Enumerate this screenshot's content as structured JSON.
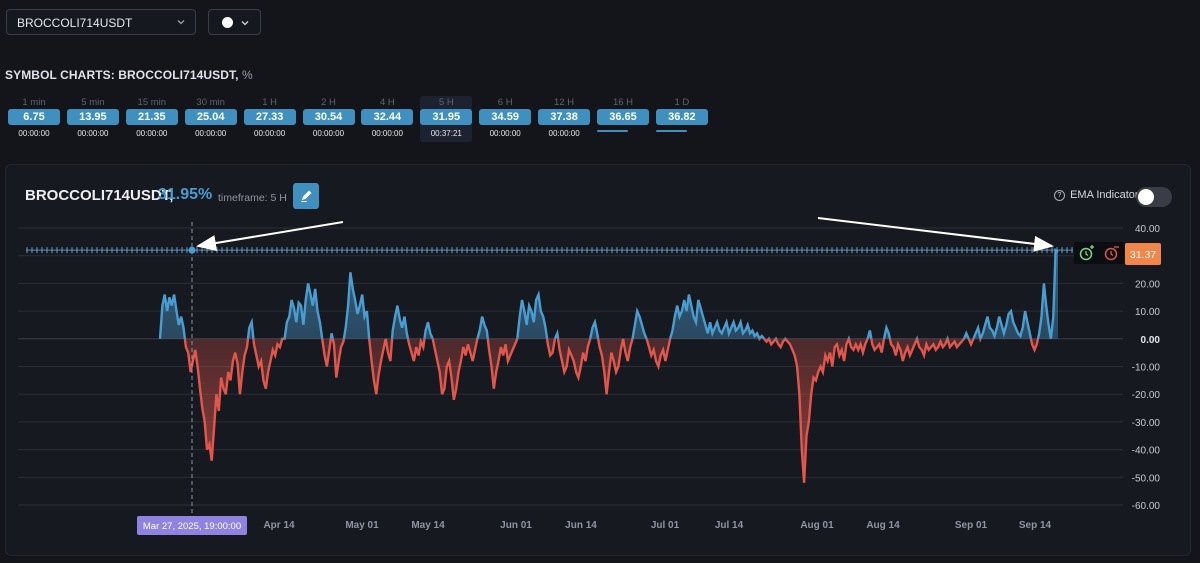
{
  "symbol_select": {
    "value": "BROCCOLI714USDT"
  },
  "color_select": {
    "color": "#ffffff"
  },
  "section": {
    "title": "SYMBOL CHARTS: BROCCOLI714USDT,",
    "unit": "%"
  },
  "timeframes": [
    {
      "label": "1 min",
      "value": "6.75",
      "countdown": "00:00:00"
    },
    {
      "label": "5 min",
      "value": "13.95",
      "countdown": "00:00:00"
    },
    {
      "label": "15 min",
      "value": "21.35",
      "countdown": "00:00:00"
    },
    {
      "label": "30 min",
      "value": "25.04",
      "countdown": "00:00:00"
    },
    {
      "label": "1 H",
      "value": "27.33",
      "countdown": "00:00:00"
    },
    {
      "label": "2 H",
      "value": "30.54",
      "countdown": "00:00:00"
    },
    {
      "label": "4 H",
      "value": "32.44",
      "countdown": "00:00:00"
    },
    {
      "label": "5 H",
      "value": "31.95",
      "countdown": "00:37:21",
      "active": true
    },
    {
      "label": "6 H",
      "value": "34.59",
      "countdown": "00:00:00"
    },
    {
      "label": "12 H",
      "value": "37.38",
      "countdown": "00:00:00"
    },
    {
      "label": "16 H",
      "value": "36.65",
      "countdown": ""
    },
    {
      "label": "1 D",
      "value": "36.82",
      "countdown": ""
    }
  ],
  "panel": {
    "symbol": "BROCCOLI714USDT,",
    "percent": "31.95%",
    "timeframe_label": "timeframe: 5 H",
    "ema_label": "EMA Indicator",
    "ema_enabled": false
  },
  "chart_data": {
    "type": "area",
    "ylim": [
      -60,
      40
    ],
    "y_ticks": [
      "40.00",
      "30.00",
      "20.00",
      "10.00",
      "0.00",
      "-10.00",
      "-20.00",
      "-30.00",
      "-40.00",
      "-50.00",
      "-60.00"
    ],
    "x_ticks": [
      "Apr 14",
      "May 01",
      "May 14",
      "Jun 01",
      "Jun 14",
      "Jul 01",
      "Jul 14",
      "Aug 01",
      "Aug 14",
      "Sep 01",
      "Sep 14"
    ],
    "crosshair_label": "Mar 27, 2025, 19:00:00",
    "current_value_label": "31.37",
    "level_value": 32,
    "positive_color": "#4a9dd0",
    "negative_color": "#e2574c",
    "points": [
      [
        0,
        0
      ],
      [
        2,
        12
      ],
      [
        4,
        16
      ],
      [
        6,
        10
      ],
      [
        8,
        15
      ],
      [
        10,
        12
      ],
      [
        12,
        16
      ],
      [
        14,
        10
      ],
      [
        16,
        5
      ],
      [
        18,
        8
      ],
      [
        20,
        4
      ],
      [
        22,
        -3
      ],
      [
        24,
        -5
      ],
      [
        26,
        -12
      ],
      [
        28,
        -8
      ],
      [
        30,
        -4
      ],
      [
        32,
        -10
      ],
      [
        34,
        -18
      ],
      [
        36,
        -25
      ],
      [
        38,
        -30
      ],
      [
        40,
        -40
      ],
      [
        42,
        -38
      ],
      [
        44,
        -44
      ],
      [
        46,
        -32
      ],
      [
        48,
        -20
      ],
      [
        50,
        -26
      ],
      [
        52,
        -14
      ],
      [
        54,
        -18
      ],
      [
        56,
        -20
      ],
      [
        58,
        -12
      ],
      [
        60,
        -15
      ],
      [
        62,
        -8
      ],
      [
        64,
        -5
      ],
      [
        66,
        -9
      ],
      [
        68,
        -20
      ],
      [
        70,
        -12
      ],
      [
        72,
        -6
      ],
      [
        74,
        -3
      ],
      [
        76,
        4
      ],
      [
        78,
        6
      ],
      [
        80,
        -2
      ],
      [
        82,
        -6
      ],
      [
        84,
        -10
      ],
      [
        86,
        -8
      ],
      [
        88,
        -15
      ],
      [
        90,
        -18
      ],
      [
        92,
        -12
      ],
      [
        94,
        -8
      ],
      [
        96,
        -4
      ],
      [
        98,
        -6
      ],
      [
        100,
        -2
      ],
      [
        102,
        -3
      ],
      [
        104,
        0
      ],
      [
        106,
        0
      ],
      [
        108,
        6
      ],
      [
        110,
        8
      ],
      [
        112,
        14
      ],
      [
        114,
        11
      ],
      [
        116,
        6
      ],
      [
        118,
        13
      ],
      [
        120,
        12
      ],
      [
        122,
        5
      ],
      [
        124,
        14
      ],
      [
        126,
        20
      ],
      [
        128,
        16
      ],
      [
        130,
        12
      ],
      [
        132,
        18
      ],
      [
        134,
        10
      ],
      [
        136,
        6
      ],
      [
        138,
        0
      ],
      [
        140,
        -6
      ],
      [
        142,
        -10
      ],
      [
        144,
        -4
      ],
      [
        146,
        2
      ],
      [
        148,
        -2
      ],
      [
        150,
        -14
      ],
      [
        152,
        -8
      ],
      [
        154,
        -3
      ],
      [
        156,
        -1
      ],
      [
        158,
        4
      ],
      [
        160,
        12
      ],
      [
        162,
        24
      ],
      [
        164,
        18
      ],
      [
        166,
        14
      ],
      [
        168,
        9
      ],
      [
        170,
        12
      ],
      [
        172,
        16
      ],
      [
        174,
        8
      ],
      [
        176,
        10
      ],
      [
        178,
        0
      ],
      [
        180,
        -8
      ],
      [
        182,
        -15
      ],
      [
        184,
        -20
      ],
      [
        186,
        -13
      ],
      [
        188,
        -8
      ],
      [
        190,
        -4
      ],
      [
        192,
        0
      ],
      [
        194,
        -5
      ],
      [
        196,
        -8
      ],
      [
        198,
        3
      ],
      [
        200,
        8
      ],
      [
        202,
        12
      ],
      [
        204,
        7
      ],
      [
        206,
        4
      ],
      [
        208,
        8
      ],
      [
        210,
        2
      ],
      [
        212,
        -2
      ],
      [
        214,
        -5
      ],
      [
        216,
        -8
      ],
      [
        218,
        -3
      ],
      [
        220,
        -6
      ],
      [
        222,
        -1
      ],
      [
        224,
        -3
      ],
      [
        226,
        3
      ],
      [
        228,
        6
      ],
      [
        230,
        2
      ],
      [
        232,
        0
      ],
      [
        234,
        -4
      ],
      [
        236,
        -8
      ],
      [
        238,
        -12
      ],
      [
        240,
        -20
      ],
      [
        242,
        -18
      ],
      [
        244,
        -10
      ],
      [
        246,
        -8
      ],
      [
        248,
        -14
      ],
      [
        250,
        -22
      ],
      [
        252,
        -18
      ],
      [
        254,
        -12
      ],
      [
        256,
        -8
      ],
      [
        258,
        -3
      ],
      [
        260,
        -6
      ],
      [
        262,
        -2
      ],
      [
        264,
        -5
      ],
      [
        266,
        -8
      ],
      [
        268,
        -4
      ],
      [
        270,
        0
      ],
      [
        272,
        3
      ],
      [
        274,
        8
      ],
      [
        276,
        5
      ],
      [
        278,
        3
      ],
      [
        280,
        -4
      ],
      [
        282,
        -10
      ],
      [
        284,
        -18
      ],
      [
        286,
        -12
      ],
      [
        288,
        -8
      ],
      [
        290,
        -3
      ],
      [
        292,
        -6
      ],
      [
        294,
        -2
      ],
      [
        296,
        -8
      ],
      [
        298,
        -6
      ],
      [
        300,
        -4
      ],
      [
        302,
        -2
      ],
      [
        304,
        0
      ],
      [
        306,
        8
      ],
      [
        308,
        14
      ],
      [
        310,
        10
      ],
      [
        312,
        5
      ],
      [
        314,
        12
      ],
      [
        316,
        10
      ],
      [
        318,
        6
      ],
      [
        320,
        14
      ],
      [
        322,
        16
      ],
      [
        324,
        10
      ],
      [
        326,
        8
      ],
      [
        328,
        4
      ],
      [
        330,
        -2
      ],
      [
        332,
        -6
      ],
      [
        334,
        -5
      ],
      [
        336,
        0
      ],
      [
        338,
        2
      ],
      [
        340,
        -4
      ],
      [
        342,
        -8
      ],
      [
        344,
        -12
      ],
      [
        346,
        -10
      ],
      [
        348,
        -4
      ],
      [
        350,
        -6
      ],
      [
        352,
        -8
      ],
      [
        354,
        -12
      ],
      [
        356,
        -14
      ],
      [
        358,
        -10
      ],
      [
        360,
        -5
      ],
      [
        362,
        -8
      ],
      [
        364,
        -3
      ],
      [
        366,
        0
      ],
      [
        368,
        4
      ],
      [
        370,
        6
      ],
      [
        372,
        2
      ],
      [
        374,
        -3
      ],
      [
        376,
        -6
      ],
      [
        378,
        -12
      ],
      [
        380,
        -20
      ],
      [
        382,
        -12
      ],
      [
        384,
        -5
      ],
      [
        386,
        -8
      ],
      [
        388,
        -12
      ],
      [
        390,
        -10
      ],
      [
        392,
        -4
      ],
      [
        394,
        0
      ],
      [
        396,
        -5
      ],
      [
        398,
        -8
      ],
      [
        400,
        -3
      ],
      [
        402,
        0
      ],
      [
        404,
        5
      ],
      [
        406,
        10
      ],
      [
        408,
        8
      ],
      [
        410,
        5
      ],
      [
        412,
        2
      ],
      [
        414,
        0
      ],
      [
        416,
        -3
      ],
      [
        418,
        -6
      ],
      [
        420,
        -4
      ],
      [
        422,
        -8
      ],
      [
        424,
        -10
      ],
      [
        426,
        -6
      ],
      [
        428,
        -4
      ],
      [
        430,
        -8
      ],
      [
        432,
        -4
      ],
      [
        434,
        0
      ],
      [
        436,
        3
      ],
      [
        438,
        8
      ],
      [
        440,
        12
      ],
      [
        442,
        8
      ],
      [
        444,
        10
      ],
      [
        446,
        14
      ],
      [
        448,
        10
      ],
      [
        450,
        16
      ],
      [
        452,
        12
      ],
      [
        454,
        8
      ],
      [
        456,
        6
      ],
      [
        458,
        14
      ],
      [
        460,
        11
      ],
      [
        462,
        8
      ],
      [
        464,
        5
      ],
      [
        466,
        2
      ],
      [
        468,
        6
      ],
      [
        470,
        2
      ],
      [
        472,
        4
      ],
      [
        474,
        6
      ],
      [
        476,
        3
      ],
      [
        478,
        2
      ],
      [
        480,
        4
      ],
      [
        482,
        6
      ],
      [
        484,
        2
      ],
      [
        486,
        4
      ],
      [
        488,
        6
      ],
      [
        490,
        3
      ],
      [
        492,
        4
      ],
      [
        494,
        6
      ],
      [
        496,
        2
      ],
      [
        498,
        3
      ],
      [
        500,
        5
      ],
      [
        502,
        2
      ],
      [
        504,
        3
      ],
      [
        506,
        1
      ],
      [
        508,
        2
      ],
      [
        510,
        0
      ],
      [
        512,
        1
      ],
      [
        514,
        0
      ],
      [
        516,
        -1
      ],
      [
        518,
        0
      ],
      [
        520,
        -2
      ],
      [
        522,
        -1
      ],
      [
        524,
        0
      ],
      [
        526,
        -2
      ],
      [
        528,
        -3
      ],
      [
        530,
        -1
      ],
      [
        532,
        0
      ],
      [
        534,
        -1
      ],
      [
        536,
        -2
      ],
      [
        538,
        -4
      ],
      [
        540,
        -6
      ],
      [
        542,
        -10
      ],
      [
        544,
        -20
      ],
      [
        546,
        -40
      ],
      [
        548,
        -52
      ],
      [
        550,
        -35
      ],
      [
        552,
        -30
      ],
      [
        554,
        -20
      ],
      [
        556,
        -14
      ],
      [
        558,
        -15
      ],
      [
        560,
        -12
      ],
      [
        562,
        -10
      ],
      [
        564,
        -12
      ],
      [
        566,
        -6
      ],
      [
        568,
        -8
      ],
      [
        570,
        -5
      ],
      [
        572,
        -10
      ],
      [
        574,
        -3
      ],
      [
        576,
        -2
      ],
      [
        578,
        -6
      ],
      [
        580,
        -4
      ],
      [
        582,
        -8
      ],
      [
        584,
        -2
      ],
      [
        586,
        0
      ],
      [
        588,
        -3
      ],
      [
        590,
        -4
      ],
      [
        592,
        -2
      ],
      [
        594,
        -4
      ],
      [
        596,
        -2
      ],
      [
        598,
        -5
      ],
      [
        600,
        -2
      ],
      [
        602,
        0
      ],
      [
        604,
        3
      ],
      [
        606,
        -2
      ],
      [
        608,
        -4
      ],
      [
        610,
        -3
      ],
      [
        612,
        -2
      ],
      [
        614,
        -5
      ],
      [
        616,
        0
      ],
      [
        618,
        4
      ],
      [
        620,
        2
      ],
      [
        622,
        -2
      ],
      [
        624,
        -3
      ],
      [
        626,
        -6
      ],
      [
        628,
        -2
      ],
      [
        630,
        -4
      ],
      [
        632,
        -8
      ],
      [
        634,
        -5
      ],
      [
        636,
        -3
      ],
      [
        638,
        -6
      ],
      [
        640,
        -4
      ],
      [
        642,
        -2
      ],
      [
        644,
        0
      ],
      [
        646,
        -3
      ],
      [
        648,
        -4
      ],
      [
        650,
        -6
      ],
      [
        652,
        -2
      ],
      [
        654,
        -4
      ],
      [
        656,
        -3
      ],
      [
        658,
        -2
      ],
      [
        660,
        -4
      ],
      [
        662,
        -3
      ],
      [
        664,
        -1
      ],
      [
        666,
        -3
      ],
      [
        668,
        -2
      ],
      [
        670,
        0
      ],
      [
        672,
        -3
      ],
      [
        674,
        -2
      ],
      [
        676,
        -1
      ],
      [
        678,
        -3
      ],
      [
        680,
        -2
      ],
      [
        682,
        -1
      ],
      [
        684,
        0
      ],
      [
        686,
        2
      ],
      [
        688,
        0
      ],
      [
        690,
        -2
      ],
      [
        692,
        0
      ],
      [
        694,
        2
      ],
      [
        696,
        4
      ],
      [
        698,
        0
      ],
      [
        700,
        2
      ],
      [
        702,
        5
      ],
      [
        704,
        8
      ],
      [
        706,
        4
      ],
      [
        708,
        3
      ],
      [
        710,
        1
      ],
      [
        712,
        4
      ],
      [
        714,
        8
      ],
      [
        716,
        5
      ],
      [
        718,
        2
      ],
      [
        720,
        5
      ],
      [
        722,
        9
      ],
      [
        724,
        10
      ],
      [
        726,
        6
      ],
      [
        728,
        4
      ],
      [
        730,
        2
      ],
      [
        732,
        1
      ],
      [
        734,
        4
      ],
      [
        736,
        10
      ],
      [
        738,
        6
      ],
      [
        740,
        2
      ],
      [
        742,
        -2
      ],
      [
        744,
        -4
      ],
      [
        746,
        -2
      ],
      [
        748,
        2
      ],
      [
        750,
        8
      ],
      [
        752,
        20
      ],
      [
        754,
        12
      ],
      [
        756,
        5
      ],
      [
        758,
        0
      ],
      [
        760,
        8
      ],
      [
        762,
        32
      ],
      [
        764,
        31.37
      ]
    ]
  }
}
